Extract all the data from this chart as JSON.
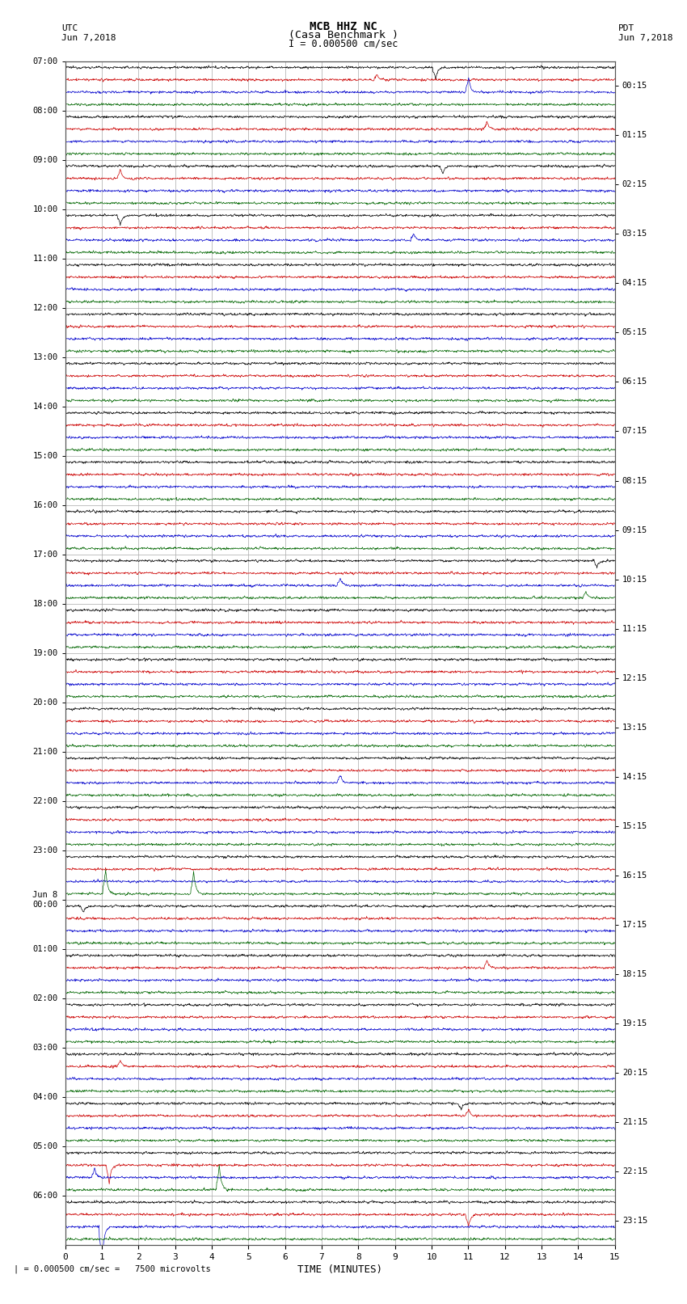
{
  "title_line1": "MCB HHZ NC",
  "title_line2": "(Casa Benchmark )",
  "scale_text": "I = 0.000500 cm/sec",
  "scale_note": "| = 0.000500 cm/sec =   7500 microvolts",
  "xlabel": "TIME (MINUTES)",
  "bg_color": "#ffffff",
  "plot_bg": "#ffffff",
  "trace_colors": [
    "#000000",
    "#cc0000",
    "#0000cc",
    "#006600"
  ],
  "num_rows": 24,
  "traces_per_row": 4,
  "xmin": 0,
  "xmax": 15,
  "grid_color": "#aaaaaa",
  "grid_minor_color": "#cccccc",
  "left_times": [
    "07:00",
    "08:00",
    "09:00",
    "10:00",
    "11:00",
    "12:00",
    "13:00",
    "14:00",
    "15:00",
    "16:00",
    "17:00",
    "18:00",
    "19:00",
    "20:00",
    "21:00",
    "22:00",
    "23:00",
    "Jun 8\n00:00",
    "01:00",
    "02:00",
    "03:00",
    "04:00",
    "05:00",
    "06:00"
  ],
  "right_times": [
    "00:15",
    "01:15",
    "02:15",
    "03:15",
    "04:15",
    "05:15",
    "06:15",
    "07:15",
    "08:15",
    "09:15",
    "10:15",
    "11:15",
    "12:15",
    "13:15",
    "14:15",
    "15:15",
    "16:15",
    "17:15",
    "18:15",
    "19:15",
    "20:15",
    "21:15",
    "22:15",
    "23:15"
  ],
  "utc_label_top": "UTC",
  "utc_label_date": "Jun 7,2018",
  "pdt_label_top": "PDT",
  "pdt_label_date": "Jun 7,2018"
}
